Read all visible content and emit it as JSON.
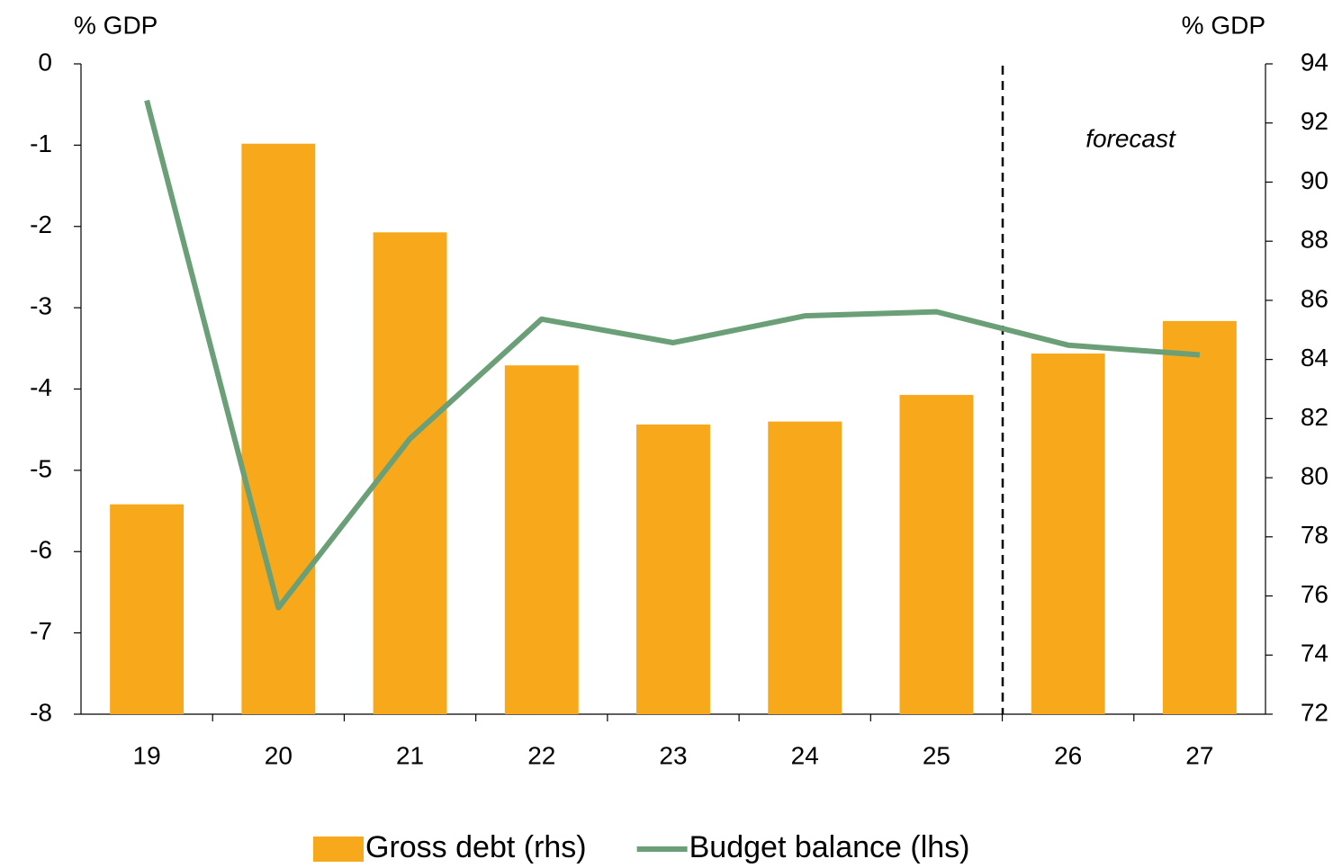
{
  "chart_data": {
    "type": "bar",
    "y_label": "% GDP",
    "y2_label": "% GDP",
    "annotation": "forecast",
    "categories": [
      "19",
      "20",
      "21",
      "22",
      "23",
      "24",
      "25",
      "26",
      "27"
    ],
    "series": [
      {
        "name": "Gross debt (rhs)",
        "type": "bar",
        "axis": "y2",
        "color": "#f7a81b",
        "values": [
          79.1,
          91.3,
          88.3,
          83.8,
          81.8,
          81.9,
          82.8,
          84.2,
          85.3
        ]
      },
      {
        "name": "Budget balance (lhs)",
        "type": "line",
        "axis": "y",
        "color": "#6a9f77",
        "values": [
          -0.45,
          -6.69,
          -4.61,
          -3.14,
          -3.43,
          -3.1,
          -3.05,
          -3.46,
          -3.58
        ]
      }
    ],
    "ylim": [
      -8,
      0
    ],
    "yticks": [
      -8,
      -7,
      -6,
      -5,
      -4,
      -3,
      -2,
      -1,
      0
    ],
    "y2lim": [
      72,
      94
    ],
    "y2ticks": [
      72,
      74,
      76,
      78,
      80,
      82,
      84,
      86,
      88,
      90,
      92,
      94
    ],
    "grid": false,
    "legend": "bottom"
  }
}
